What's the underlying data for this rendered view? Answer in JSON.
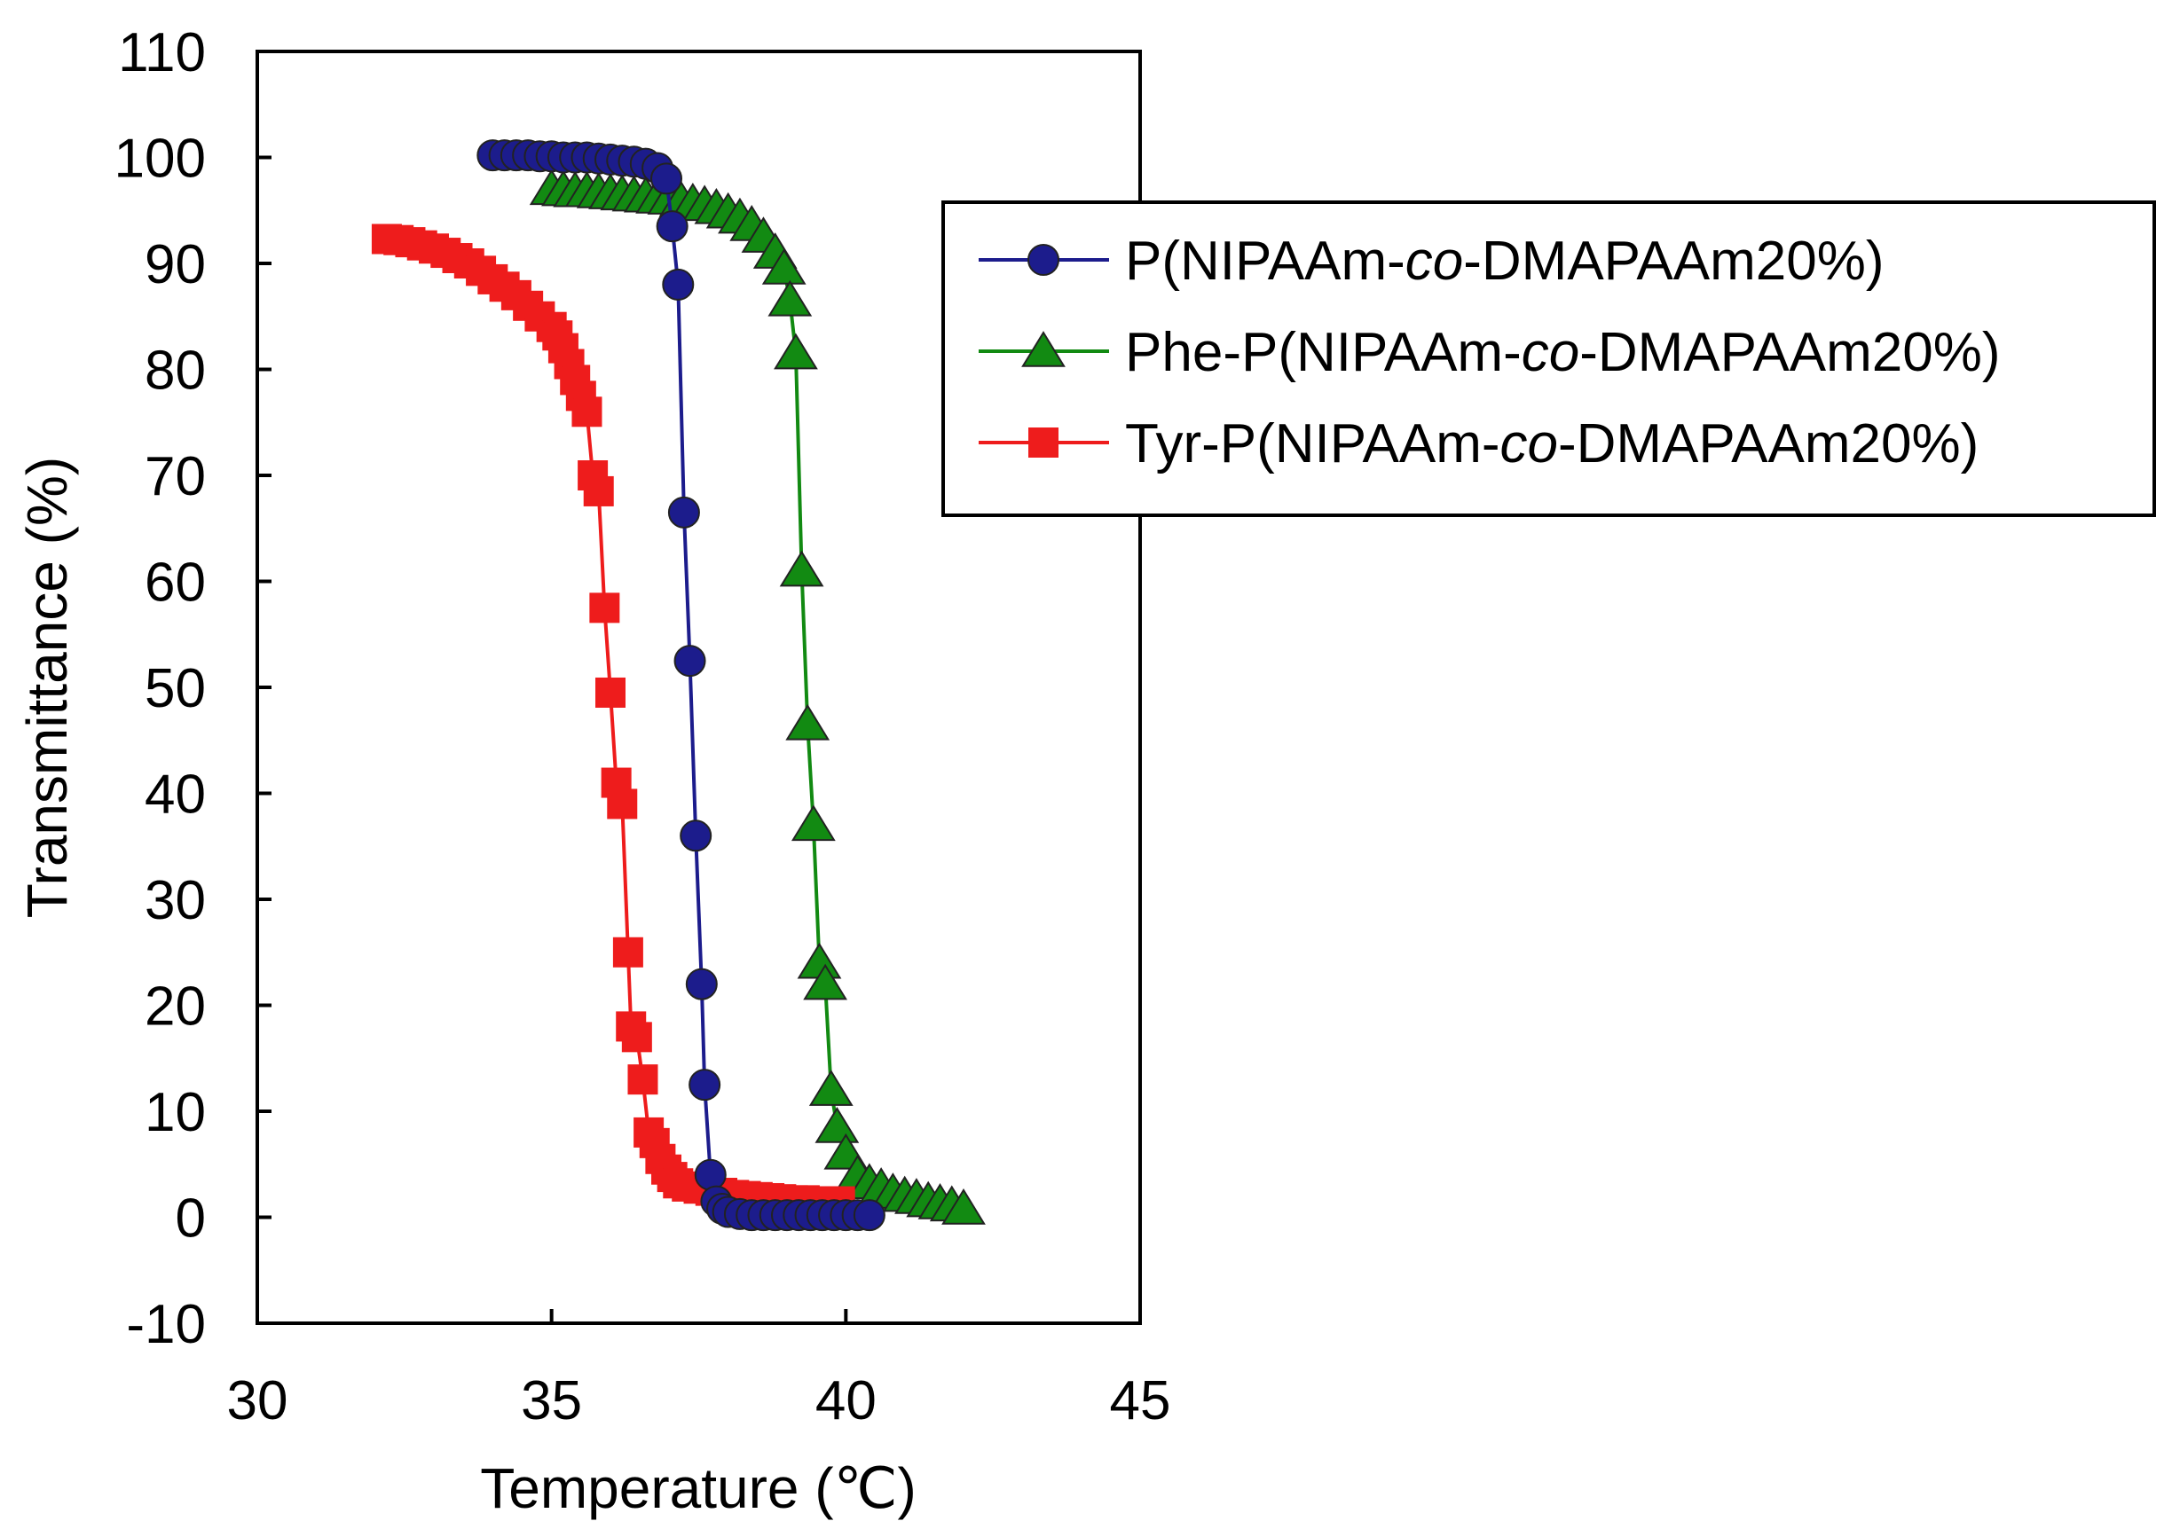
{
  "chart_data": {
    "type": "scatter",
    "xlabel": "Temperature (℃)",
    "ylabel": "Transmittance (%)",
    "xlim": [
      30,
      45
    ],
    "ylim": [
      -10,
      110
    ],
    "xticks": [
      "30",
      "35",
      "40",
      "45"
    ],
    "yticks": [
      "-10",
      "0",
      "10",
      "20",
      "30",
      "40",
      "50",
      "60",
      "70",
      "80",
      "90",
      "100",
      "110"
    ],
    "grid": false,
    "legend_position": "right",
    "series": [
      {
        "name": "P(NIPAAm-co-DMAPAAm20%)",
        "legend_parts": [
          "P(NIPAAm-",
          "co",
          "-DMAPAAm20%)"
        ],
        "color": "#1c1c8c",
        "marker": "circle",
        "x": [
          34.0,
          34.2,
          34.4,
          34.6,
          34.8,
          35.0,
          35.2,
          35.4,
          35.6,
          35.8,
          36.0,
          36.2,
          36.4,
          36.6,
          36.8,
          36.95,
          37.05,
          37.15,
          37.25,
          37.35,
          37.45,
          37.55,
          37.6,
          37.7,
          37.8,
          37.9,
          38.0,
          38.2,
          38.4,
          38.6,
          38.8,
          39.0,
          39.2,
          39.4,
          39.6,
          39.8,
          40.0,
          40.2,
          40.4
        ],
        "y": [
          100.2,
          100.2,
          100.2,
          100.2,
          100.1,
          100.1,
          100.0,
          100.0,
          100.0,
          99.9,
          99.8,
          99.7,
          99.6,
          99.4,
          99.0,
          98.0,
          93.5,
          88.0,
          66.5,
          52.5,
          36.0,
          22.0,
          12.5,
          4.0,
          1.5,
          0.8,
          0.5,
          0.3,
          0.2,
          0.2,
          0.2,
          0.2,
          0.2,
          0.2,
          0.2,
          0.2,
          0.2,
          0.2,
          0.2
        ]
      },
      {
        "name": "Phe-P(NIPAAm-co-DMAPAAm20%)",
        "legend_parts": [
          "Phe-P(NIPAAm-",
          "co",
          "-DMAPAAm20%)"
        ],
        "color": "#128a12",
        "marker": "triangle",
        "x": [
          35.0,
          35.2,
          35.4,
          35.6,
          35.8,
          36.0,
          36.2,
          36.4,
          36.6,
          36.8,
          37.0,
          37.2,
          37.4,
          37.6,
          37.8,
          38.0,
          38.2,
          38.4,
          38.6,
          38.8,
          38.95,
          39.05,
          39.15,
          39.25,
          39.35,
          39.45,
          39.55,
          39.65,
          39.75,
          39.85,
          40.0,
          40.2,
          40.4,
          40.6,
          40.8,
          41.0,
          41.2,
          41.4,
          41.6,
          41.8,
          42.0
        ],
        "y": [
          97.0,
          96.9,
          96.8,
          96.8,
          96.7,
          96.6,
          96.5,
          96.4,
          96.3,
          96.2,
          96.1,
          95.9,
          95.7,
          95.5,
          95.2,
          94.8,
          94.3,
          93.6,
          92.5,
          91.0,
          89.5,
          86.5,
          81.5,
          61.0,
          46.5,
          37.0,
          24.0,
          22.0,
          12.0,
          8.5,
          6.0,
          4.0,
          3.2,
          2.8,
          2.3,
          2.0,
          1.8,
          1.5,
          1.3,
          1.1,
          0.8
        ]
      },
      {
        "name": "Tyr-P(NIPAAm-co-DMAPAAm20%)",
        "legend_parts": [
          "Tyr-P(NIPAAm-",
          "co",
          "-DMAPAAm20%)"
        ],
        "color": "#ee1c1c",
        "marker": "square",
        "x": [
          32.2,
          32.4,
          32.6,
          32.8,
          33.0,
          33.2,
          33.4,
          33.6,
          33.8,
          34.0,
          34.2,
          34.4,
          34.6,
          34.8,
          35.0,
          35.1,
          35.2,
          35.3,
          35.4,
          35.5,
          35.6,
          35.7,
          35.8,
          35.9,
          36.0,
          36.1,
          36.2,
          36.3,
          36.35,
          36.45,
          36.55,
          36.65,
          36.75,
          36.85,
          36.95,
          37.05,
          37.15,
          37.3,
          37.5,
          37.7,
          37.9,
          38.1,
          38.3,
          38.5,
          38.7,
          38.9,
          39.1,
          39.3,
          39.5,
          39.7,
          39.9
        ],
        "y": [
          92.3,
          92.2,
          92.0,
          91.7,
          91.4,
          91.0,
          90.5,
          90.0,
          89.3,
          88.5,
          87.8,
          87.0,
          86.0,
          85.0,
          84.0,
          83.2,
          82.0,
          80.5,
          79.0,
          77.5,
          76.0,
          70.0,
          68.5,
          57.5,
          49.5,
          41.0,
          39.0,
          25.0,
          18.0,
          17.0,
          13.0,
          8.0,
          7.0,
          5.5,
          4.5,
          3.8,
          3.2,
          2.9,
          2.7,
          2.5,
          2.3,
          2.1,
          2.0,
          1.9,
          1.8,
          1.7,
          1.6,
          1.6,
          1.5,
          1.5,
          1.5
        ]
      }
    ]
  }
}
